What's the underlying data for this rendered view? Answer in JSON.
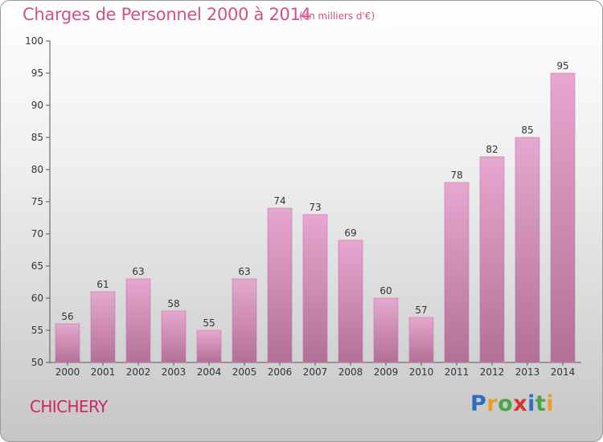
{
  "header": {
    "title": "Charges de Personnel 2000 à 2014",
    "unit": "(en milliers d'€)"
  },
  "footer": {
    "commune": "CHICHERY",
    "logo_letters": [
      "P",
      "r",
      "o",
      "x",
      "i",
      "t",
      "i"
    ],
    "logo_colors": [
      "#2b6fc0",
      "#e8a020",
      "#4aa64a",
      "#d8342c",
      "#2b6fc0",
      "#4aa64a",
      "#e8a020"
    ]
  },
  "chart_data": {
    "type": "bar",
    "categories": [
      "2000",
      "2001",
      "2002",
      "2003",
      "2004",
      "2005",
      "2006",
      "2007",
      "2008",
      "2009",
      "2010",
      "2011",
      "2012",
      "2013",
      "2014"
    ],
    "values": [
      56,
      61,
      63,
      58,
      55,
      63,
      74,
      73,
      69,
      60,
      57,
      78,
      82,
      85,
      95
    ],
    "data_labels": [
      "56",
      "61",
      "63",
      "58",
      "55",
      "63",
      "74",
      "73",
      "69",
      "60",
      "57",
      "78",
      "82",
      "85",
      "95"
    ],
    "ylim": [
      50,
      100
    ],
    "yticks": [
      50,
      55,
      60,
      65,
      70,
      75,
      80,
      85,
      90,
      95,
      100
    ],
    "ytick_labels": [
      "50",
      "55",
      "60",
      "65",
      "70",
      "75",
      "80",
      "85",
      "90",
      "95",
      "100"
    ],
    "grid": false,
    "colors": {
      "bar_top": "#e6a8d0",
      "bar_bottom": "#b27098",
      "bar_edge": "#c27aa6",
      "axis": "#555555"
    }
  }
}
